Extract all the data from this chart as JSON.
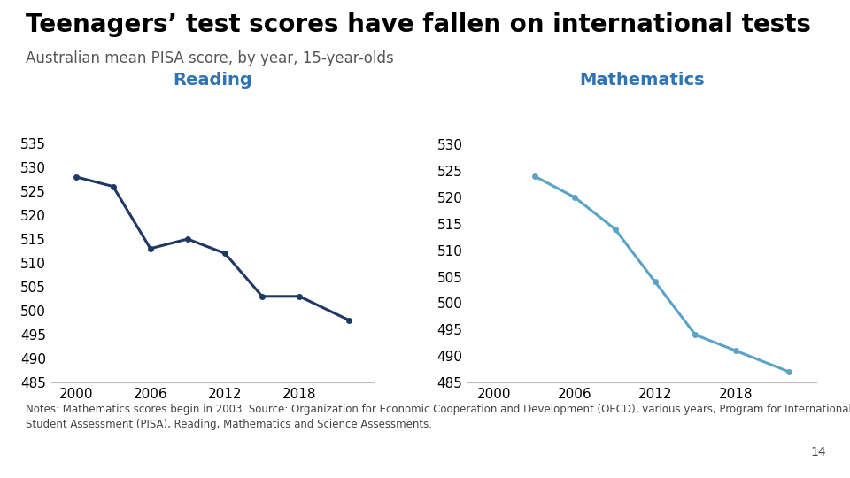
{
  "title": "Teenagers’ test scores have fallen on international tests",
  "subtitle": "Australian mean PISA score, by year, 15-year-olds",
  "reading": {
    "label": "Reading",
    "years": [
      2000,
      2003,
      2006,
      2009,
      2012,
      2015,
      2018,
      2022
    ],
    "scores": [
      528,
      526,
      513,
      515,
      512,
      503,
      503,
      498
    ],
    "color": "#1F3864",
    "ylim": [
      485,
      537
    ],
    "yticks": [
      485,
      490,
      495,
      500,
      505,
      510,
      515,
      520,
      525,
      530,
      535
    ]
  },
  "mathematics": {
    "label": "Mathematics",
    "years": [
      2003,
      2006,
      2009,
      2012,
      2015,
      2018,
      2022
    ],
    "scores": [
      524,
      520,
      514,
      504,
      494,
      491,
      487
    ],
    "color": "#5BA3C9",
    "ylim": [
      485,
      532
    ],
    "yticks": [
      485,
      490,
      495,
      500,
      505,
      510,
      515,
      520,
      525,
      530
    ]
  },
  "xticks": [
    2000,
    2006,
    2012,
    2018
  ],
  "title_color": "#000000",
  "subtitle_color": "#555555",
  "label_color": "#2E74B5",
  "note": "Notes: Mathematics scores begin in 2003. Source: Organization for Economic Cooperation and Development (OECD), various years, Program for International Student Assessment (PISA), Reading, Mathematics and Science Assessments.",
  "page_number": "14",
  "bg_color": "#FFFFFF",
  "title_fontsize": 20,
  "subtitle_fontsize": 12,
  "label_fontsize": 14,
  "tick_fontsize": 11,
  "note_fontsize": 8.5
}
